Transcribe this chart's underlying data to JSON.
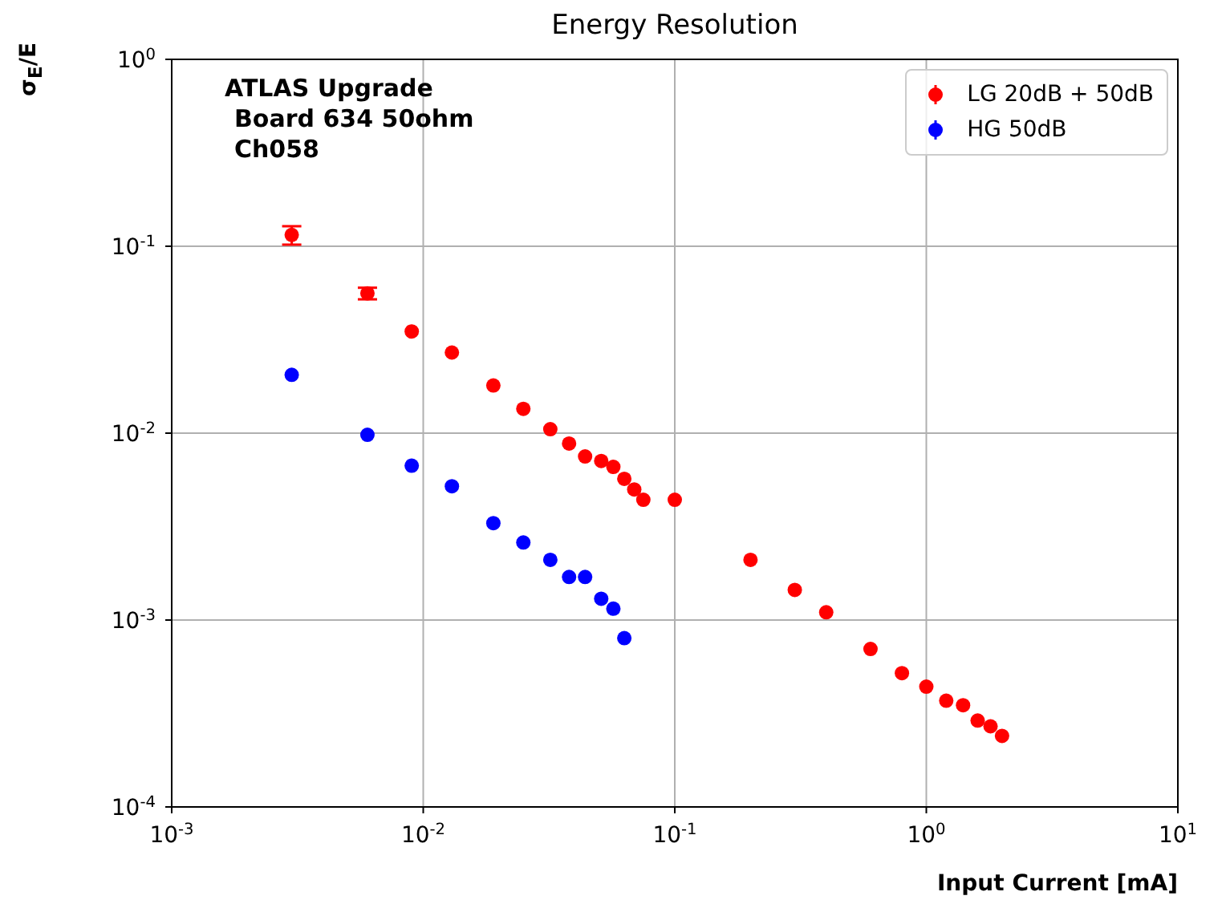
{
  "chart_data": {
    "type": "scatter",
    "title": "Energy Resolution",
    "xlabel": "Input Current [mA]",
    "ylabel": "σ$_{E}$/E",
    "annotations": [
      "ATLAS Upgrade",
      "Board 634 50ohm",
      "Ch058"
    ],
    "log": "xy",
    "grid": true,
    "legend": "top right",
    "marker": "circle",
    "xlim": [
      0.001,
      10
    ],
    "ylim": [
      0.0001,
      1
    ],
    "xticks": [
      {
        "value": 0.001,
        "label": "10$^{-3}$"
      },
      {
        "value": 0.01,
        "label": "10$^{-2}$"
      },
      {
        "value": 0.1,
        "label": "10$^{-1}$"
      },
      {
        "value": 1,
        "label": "10$^{0}$"
      },
      {
        "value": 10,
        "label": "10$^{1}$"
      }
    ],
    "yticks": [
      {
        "value": 0.0001,
        "label": "10$^{-4}$"
      },
      {
        "value": 0.001,
        "label": "10$^{-3}$"
      },
      {
        "value": 0.01,
        "label": "10$^{-2}$"
      },
      {
        "value": 0.1,
        "label": "10$^{-1}$"
      },
      {
        "value": 1,
        "label": "10$^{0}$"
      }
    ],
    "series": [
      {
        "name": "LG 20dB + 50dB",
        "color": "#ff0000",
        "x": [
          0.003,
          0.006,
          0.009,
          0.013,
          0.019,
          0.025,
          0.032,
          0.038,
          0.044,
          0.051,
          0.057,
          0.063,
          0.069,
          0.075,
          0.1,
          0.2,
          0.3,
          0.4,
          0.6,
          0.8,
          1.0,
          1.2,
          1.4,
          1.6,
          1.8,
          2.0
        ],
        "values": [
          0.115,
          0.056,
          0.035,
          0.027,
          0.018,
          0.0135,
          0.0105,
          0.0088,
          0.0075,
          0.0071,
          0.0066,
          0.0057,
          0.005,
          0.0044,
          0.0044,
          0.0021,
          0.00145,
          0.0011,
          0.0007,
          0.00052,
          0.00044,
          0.00037,
          0.00035,
          0.00029,
          0.00027,
          0.00024
        ],
        "errors": [
          0.013,
          0.004,
          null,
          null,
          null,
          null,
          null,
          null,
          null,
          null,
          null,
          null,
          null,
          null,
          null,
          null,
          null,
          null,
          null,
          null,
          null,
          null,
          null,
          null,
          null,
          null
        ]
      },
      {
        "name": "HG 50dB",
        "color": "#0000ff",
        "x": [
          0.003,
          0.006,
          0.009,
          0.013,
          0.019,
          0.025,
          0.032,
          0.038,
          0.044,
          0.051,
          0.057,
          0.063
        ],
        "values": [
          0.0205,
          0.0098,
          0.0067,
          0.0052,
          0.0033,
          0.0026,
          0.0021,
          0.0017,
          0.0017,
          0.0013,
          0.00115,
          0.0008
        ]
      }
    ]
  }
}
